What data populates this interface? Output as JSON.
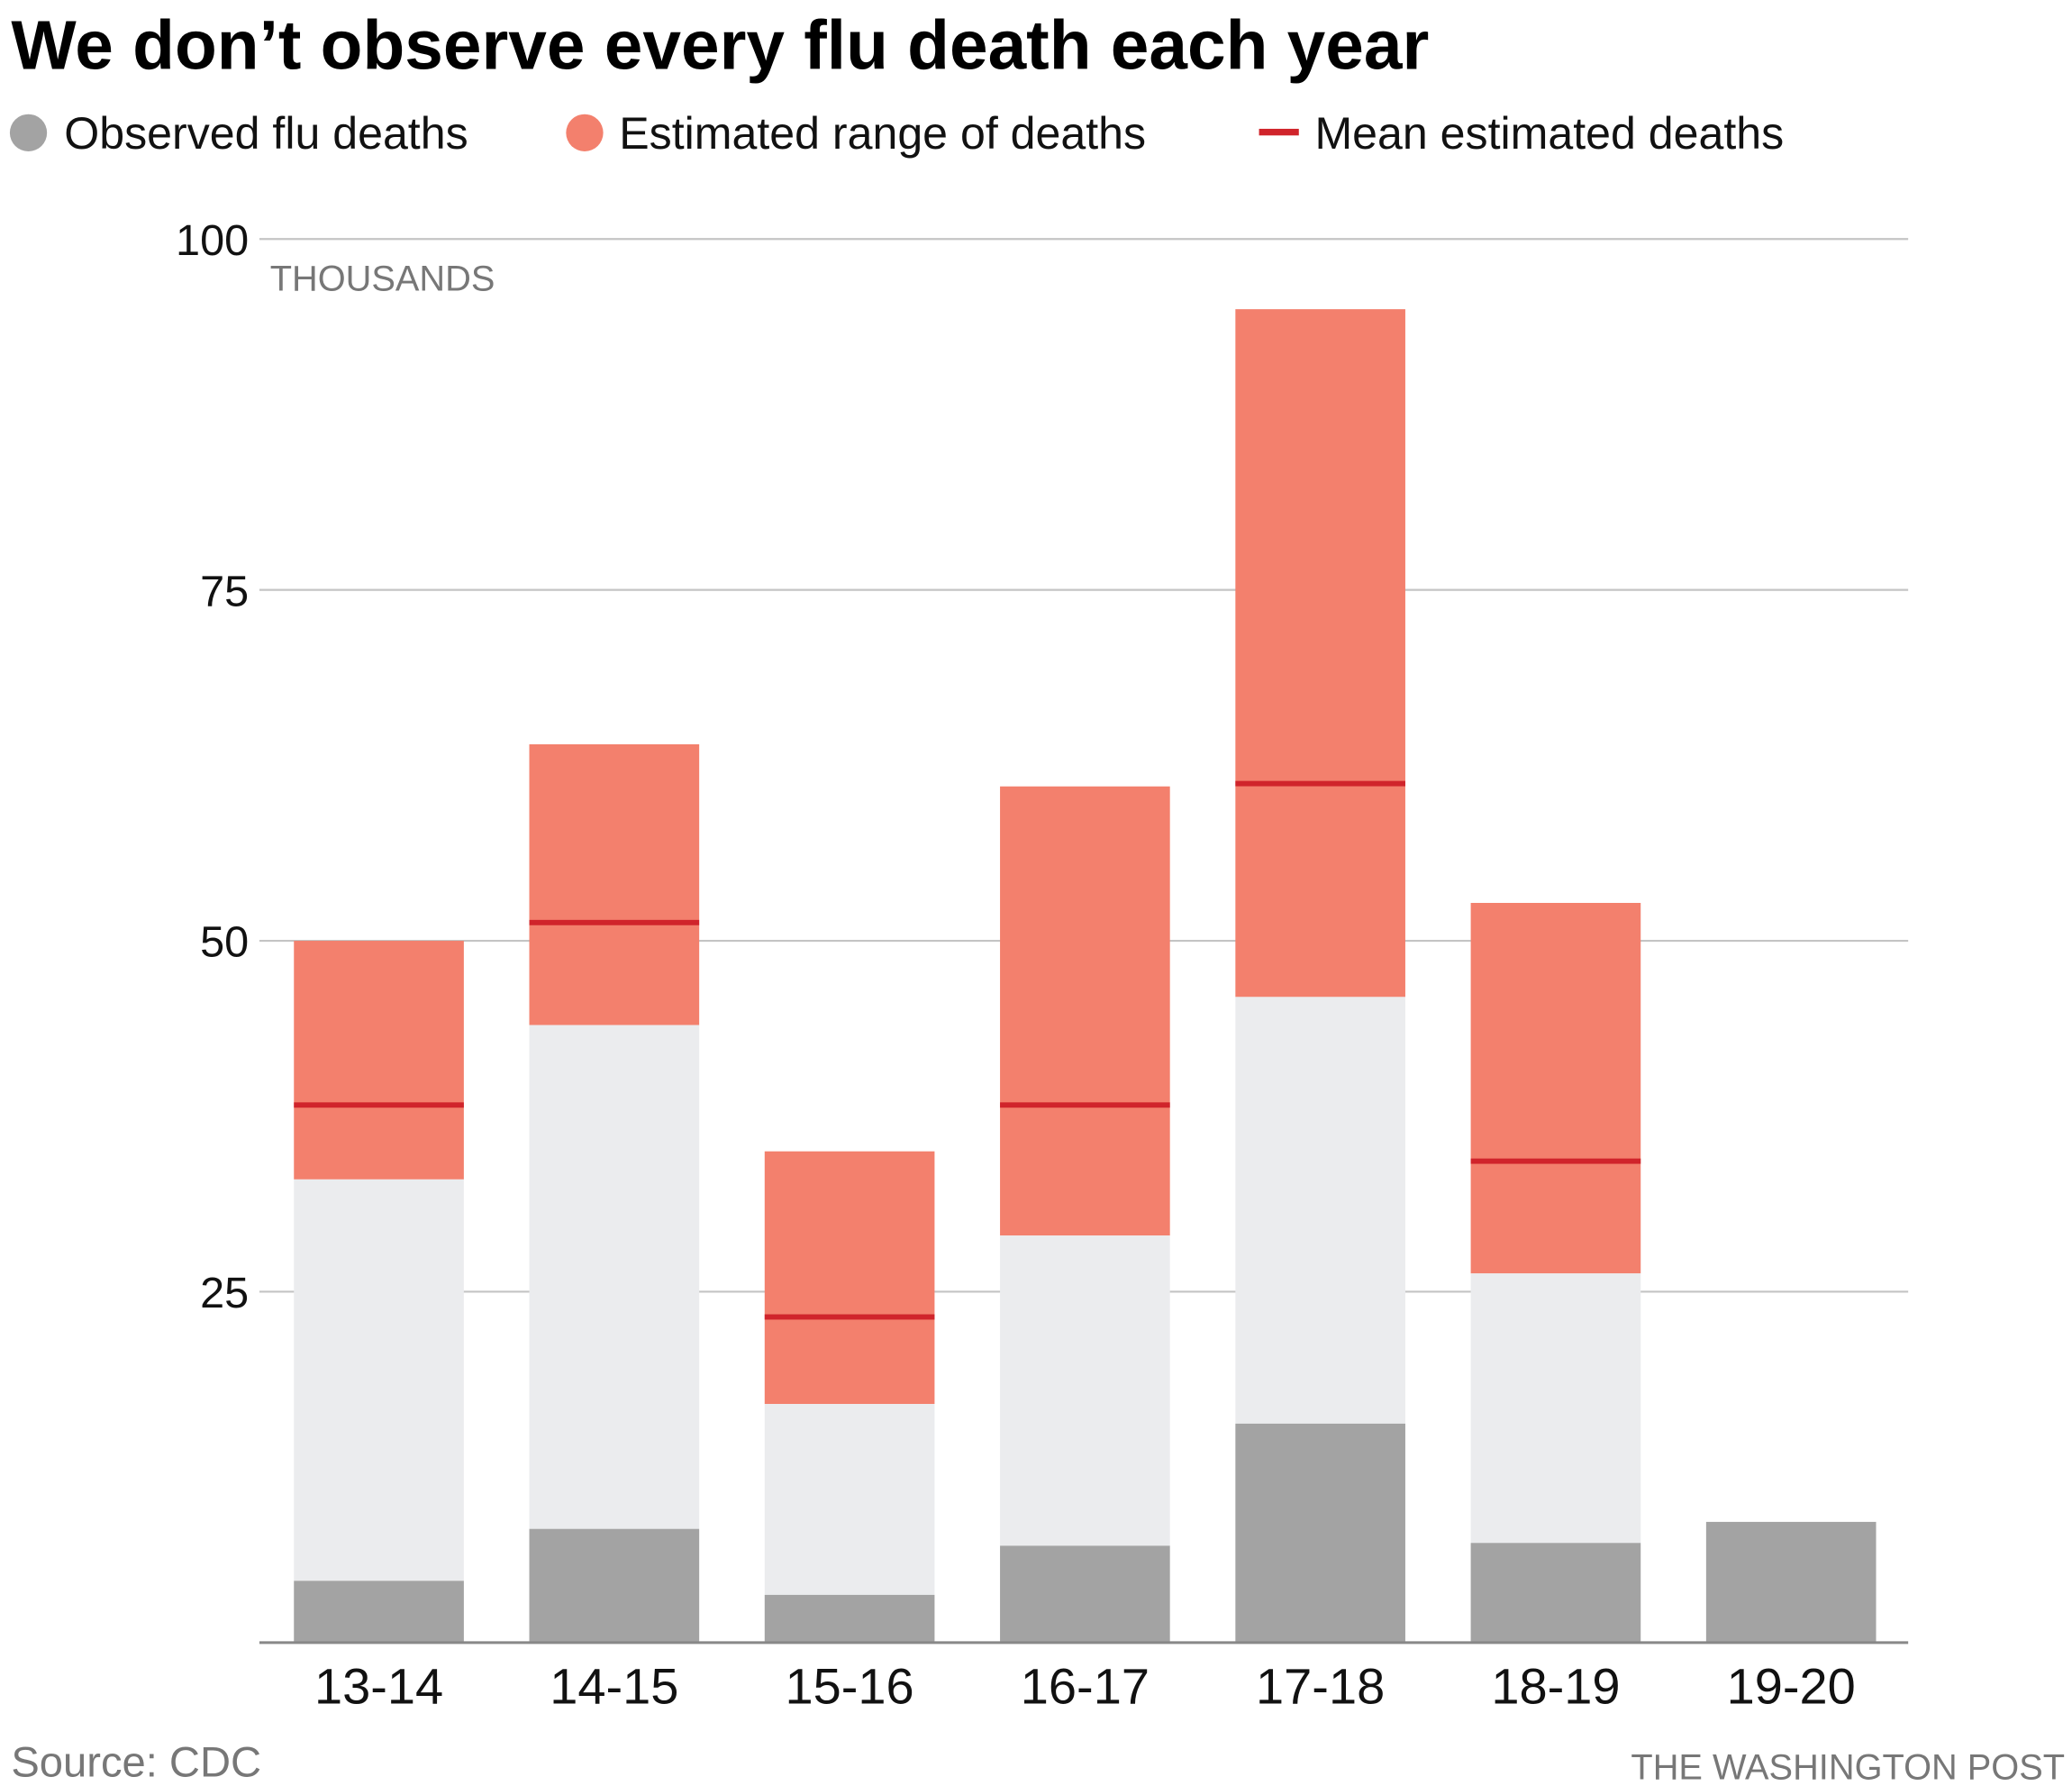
{
  "chart_data": {
    "type": "bar",
    "title": "We don’t observe every flu death each year",
    "unit_label": "THOUSANDS",
    "ylim": [
      0,
      100
    ],
    "yticks": [
      25,
      50,
      75,
      100
    ],
    "grid": true,
    "legend_placement": "top-left",
    "legend": [
      {
        "label": "Observed flu deaths",
        "color": "#a3a3a3",
        "shape": "circle"
      },
      {
        "label": "Estimated range of deaths",
        "color": "#f3806d",
        "shape": "circle"
      },
      {
        "label": "Mean estimated deaths",
        "color": "#d0242b",
        "shape": "line"
      }
    ],
    "categories": [
      "13-14",
      "14-15",
      "15-16",
      "16-17",
      "17-18",
      "18-19",
      "19-20"
    ],
    "observed": [
      4.4,
      8.1,
      3.4,
      6.9,
      15.6,
      7.1,
      8.6
    ],
    "estimate_low": [
      33,
      44,
      17,
      29,
      46,
      26.3,
      null
    ],
    "estimate_high": [
      50,
      64,
      35,
      61,
      95,
      52.7,
      null
    ],
    "estimate_mean": [
      38.3,
      51.3,
      23.2,
      38.3,
      61.2,
      34.3,
      null
    ],
    "colors": {
      "observed": "#a3a3a3",
      "unobserved": "#ebecee",
      "range": "#f3806d",
      "mean": "#d0242b",
      "grid": "#c4c4c4",
      "axis": "#888888"
    }
  },
  "footer": {
    "source": "Source: CDC",
    "credit": "THE WASHINGTON POST"
  }
}
